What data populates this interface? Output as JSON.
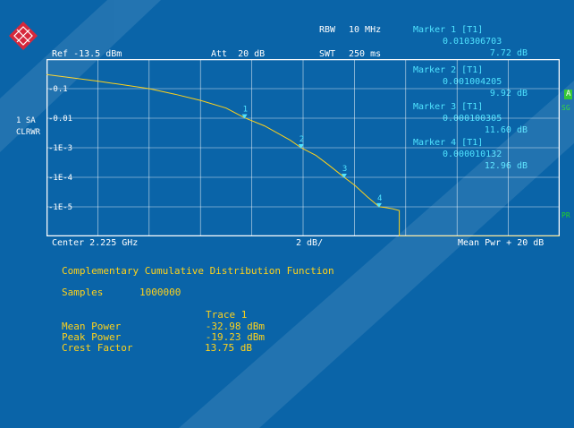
{
  "header": {
    "rbw_label": "RBW",
    "rbw_value": "10 MHz",
    "swt_label": "SWT",
    "swt_value": "250 ms",
    "ref_label": "Ref -13.5 dBm",
    "att_label": "Att  20 dB"
  },
  "markers": [
    {
      "title": "Marker 1 [T1]",
      "x_value": "0.010306703",
      "y_value": "7.72 dB"
    },
    {
      "title": "Marker 2 [T1]",
      "x_value": "0.001004205",
      "y_value": "9.92 dB"
    },
    {
      "title": "Marker 3 [T1]",
      "x_value": "0.000100305",
      "y_value": "11.60 dB"
    },
    {
      "title": "Marker 4 [T1]",
      "x_value": "0.000010132",
      "y_value": "12.96 dB"
    }
  ],
  "side": {
    "trace_label_1": "1 SA",
    "trace_label_2": "CLRWR",
    "right_tag_a": "A",
    "right_tag_sg": "SG",
    "right_tag_pr": "PR"
  },
  "axis": {
    "y_ticks": [
      "0.1",
      "0.01",
      "1E-3",
      "1E-4",
      "1E-5"
    ],
    "bottom_left": "Center 2.225 GHz",
    "bottom_center": "2 dB/",
    "bottom_right": "Mean Pwr + 20 dB"
  },
  "chart_data": {
    "type": "line",
    "title": "",
    "x_unit": "dB above mean power",
    "xlim": [
      0,
      20
    ],
    "y_scale": "log",
    "ylim": [
      1e-06,
      1
    ],
    "series": [
      {
        "x": [
          0,
          2,
          4,
          5,
          6,
          7,
          7.72,
          8.5,
          9.5,
          9.92,
          10.5,
          11.0,
          11.6,
          12.0,
          12.5,
          12.96,
          13.2,
          13.5,
          13.75,
          13.75
        ],
        "y": [
          0.3,
          0.18,
          0.1,
          0.065,
          0.04,
          0.022,
          0.0103,
          0.0055,
          0.0018,
          0.001,
          0.00055,
          0.00026,
          0.0001,
          5.5e-05,
          2.2e-05,
          1.01e-05,
          9.5e-06,
          8.5e-06,
          7.5e-06,
          1e-06
        ]
      }
    ],
    "marker_labels": [
      "1",
      "2",
      "3",
      "4"
    ]
  },
  "info": {
    "heading": "Complementary Cumulative Distribution Function",
    "samples_label": "Samples",
    "samples_value": "1000000",
    "trace_header": "Trace 1",
    "rows": [
      {
        "label": "Mean Power",
        "value": "-32.98 dBm"
      },
      {
        "label": "Peak Power",
        "value": "-19.23 dBm"
      },
      {
        "label": "Crest Factor",
        "value": "13.75 dB"
      }
    ]
  },
  "colors": {
    "background": "#0a64a8",
    "trace": "#ffd21a",
    "marker_text": "#4fe3ff",
    "grid": "#ffffff",
    "logo": "#d6283c"
  }
}
